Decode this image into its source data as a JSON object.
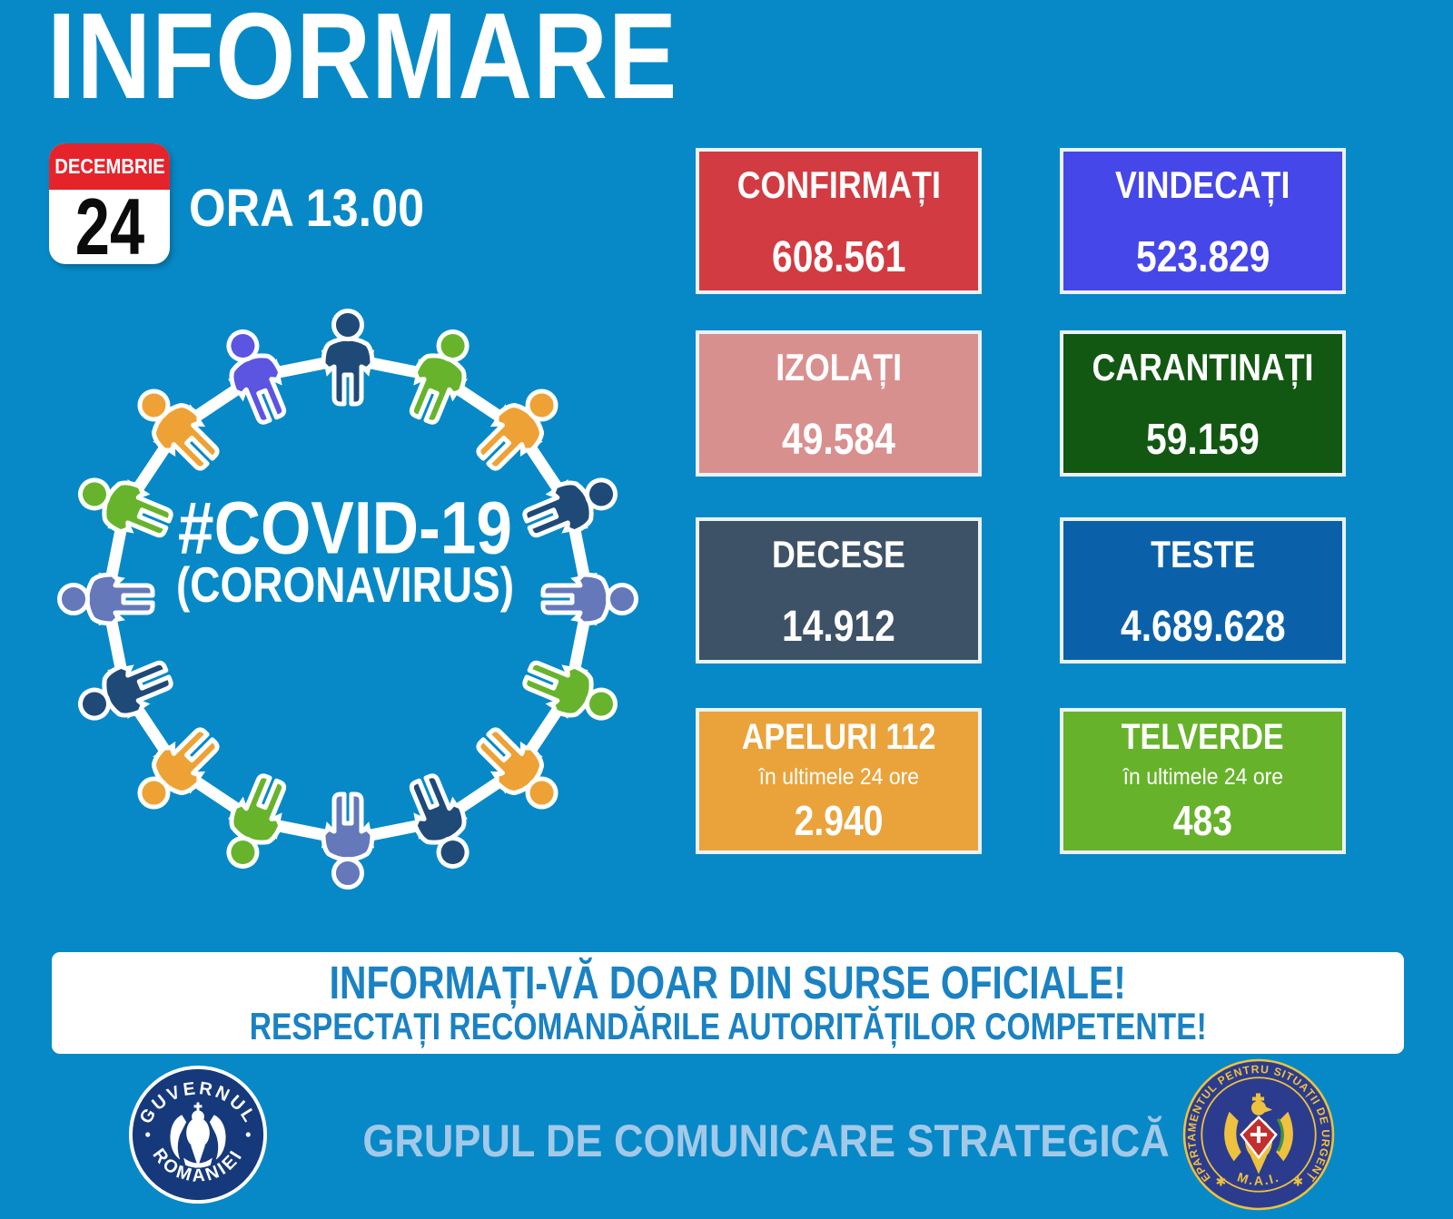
{
  "title": "INFORMARE",
  "date_badge": {
    "month": "DECEMBRIE",
    "day": "24"
  },
  "time_label": "ORA 13.00",
  "diagram": {
    "hashtag": "#COVID-19",
    "subtitle": "(CORONAVIRUS)",
    "people_colors": [
      "#1F4A78",
      "#67B42C",
      "#EEA235",
      "#1F4A78",
      "#6478BA",
      "#67B42C",
      "#EEA235",
      "#1F4A78",
      "#6478BA",
      "#67B42C",
      "#EEA235",
      "#1F4A78",
      "#6478BA",
      "#67B42C",
      "#EEA235",
      "#5B55E2"
    ],
    "arrow_color": "#FFFFFF"
  },
  "cards": [
    {
      "label": "CONFIRMAȚI",
      "value": "608.561",
      "bg": "#D23B41"
    },
    {
      "label": "VINDECAȚI",
      "value": "523.829",
      "bg": "#4547E9"
    },
    {
      "label": "IZOLAȚI",
      "value": "49.584",
      "bg": "#D8908F"
    },
    {
      "label": "CARANTINAȚI",
      "value": "59.159",
      "bg": "#125812"
    },
    {
      "label": "DECESE",
      "value": "14.912",
      "bg": "#3D5266"
    },
    {
      "label": "TESTE",
      "value": "4.689.628",
      "bg": "#0B61A9"
    },
    {
      "label": "APELURI 112",
      "sub": "în ultimele 24 ore",
      "value": "2.940",
      "bg": "#EAA33B"
    },
    {
      "label": "TELVERDE",
      "sub": "în ultimele 24 ore",
      "value": "483",
      "bg": "#67B22B"
    }
  ],
  "banner": {
    "line1": "INFORMAȚI-VĂ DOAR DIN SURSE OFICIALE!",
    "line2": "RESPECTAȚI RECOMANDĂRILE AUTORITĂȚILOR COMPETENTE!"
  },
  "footer": {
    "text": "GRUPUL DE COMUNICARE STRATEGICĂ",
    "gov_logo": {
      "top": "GUVERNUL",
      "bottom": "ROMÂNIEI"
    },
    "dsu_logo": {
      "arc": "DEPARTAMENTUL PENTRU SITUAȚII DE URGENȚA",
      "bottom": "M.A.I."
    }
  },
  "colors": {
    "background": "#0789C7",
    "card_border": "#EAF2F8",
    "banner_text": "#1A82C2",
    "footer_text": "#A3C9E8",
    "calendar_red": "#E6232B",
    "gov_navy": "#16397C",
    "dsu_navy": "#2B3C8F",
    "dsu_yellow": "#EEC13E"
  }
}
